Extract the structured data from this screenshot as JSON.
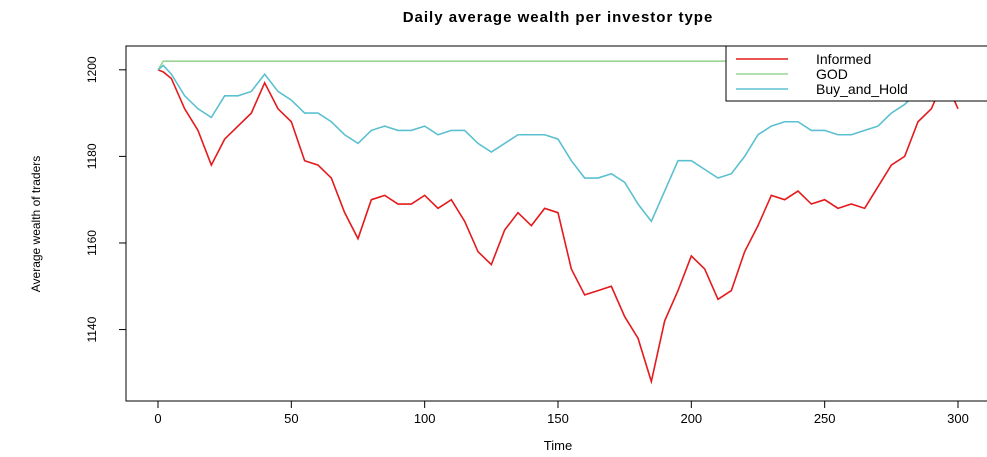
{
  "chart_data": {
    "type": "line",
    "title": "Daily average wealth per investor type",
    "x_label": "Time",
    "y_label": "Average wealth of traders",
    "x": [
      0,
      2,
      5,
      10,
      15,
      20,
      25,
      30,
      35,
      40,
      45,
      50,
      55,
      60,
      65,
      70,
      75,
      80,
      85,
      90,
      95,
      100,
      105,
      110,
      115,
      120,
      125,
      130,
      135,
      140,
      145,
      150,
      155,
      160,
      165,
      170,
      175,
      180,
      185,
      190,
      195,
      200,
      205,
      210,
      215,
      220,
      225,
      230,
      235,
      240,
      245,
      250,
      255,
      260,
      265,
      270,
      275,
      280,
      285,
      290,
      295,
      300
    ],
    "series": [
      {
        "name": "Informed",
        "color": "#e41a1c",
        "values": [
          1200,
          1199.5,
          1198,
          1191,
          1186,
          1178,
          1184,
          1187,
          1190,
          1197,
          1191,
          1188,
          1179,
          1178,
          1175,
          1167,
          1161,
          1170,
          1171,
          1169,
          1169,
          1171,
          1168,
          1170,
          1165,
          1158,
          1155,
          1163,
          1167,
          1164,
          1168,
          1167,
          1154,
          1148,
          1149,
          1150,
          1143,
          1138,
          1128,
          1142,
          1149,
          1157,
          1154,
          1147,
          1149,
          1158,
          1164,
          1171,
          1170,
          1172,
          1169,
          1170,
          1168,
          1169,
          1168,
          1173,
          1178,
          1180,
          1188,
          1191,
          1198,
          1191
        ]
      },
      {
        "name": "GOD",
        "color": "#99d594",
        "values": [
          1200,
          1202,
          1202,
          1202,
          1202,
          1202,
          1202,
          1202,
          1202,
          1202,
          1202,
          1202,
          1202,
          1202,
          1202,
          1202,
          1202,
          1202,
          1202,
          1202,
          1202,
          1202,
          1202,
          1202,
          1202,
          1202,
          1202,
          1202,
          1202,
          1202,
          1202,
          1202,
          1202,
          1202,
          1202,
          1202,
          1202,
          1202,
          1202,
          1202,
          1202,
          1202,
          1202,
          1202,
          1202,
          1202,
          1202,
          1202,
          1202,
          1202,
          1202,
          1202,
          1202,
          1202,
          1202,
          1202,
          1202,
          1202,
          1202,
          1202,
          1202,
          1202
        ]
      },
      {
        "name": "Buy_and_Hold",
        "color": "#5bc0d0",
        "values": [
          1200,
          1201,
          1199,
          1194,
          1191,
          1189,
          1194,
          1194,
          1195,
          1199,
          1195,
          1193,
          1190,
          1190,
          1188,
          1185,
          1183,
          1186,
          1187,
          1186,
          1186,
          1187,
          1185,
          1186,
          1186,
          1183,
          1181,
          1183,
          1185,
          1185,
          1185,
          1184,
          1179,
          1175,
          1175,
          1176,
          1174,
          1169,
          1165,
          1172,
          1179,
          1179,
          1177,
          1175,
          1176,
          1180,
          1185,
          1187,
          1188,
          1188,
          1186,
          1186,
          1185,
          1185,
          1186,
          1187,
          1190,
          1192,
          1195,
          1198,
          1199,
          1197
        ]
      }
    ],
    "xlim": [
      -12,
      312
    ],
    "ylim": [
      1123.5,
      1205.5
    ],
    "xticks": [
      0,
      50,
      100,
      150,
      200,
      250,
      300
    ],
    "yticks": [
      1140,
      1160,
      1180,
      1200
    ],
    "grid": false,
    "legend": "top-right"
  }
}
